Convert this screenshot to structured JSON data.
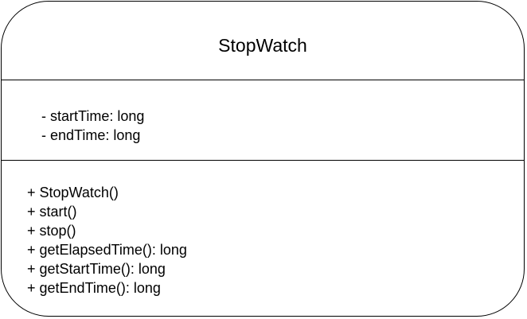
{
  "class": {
    "name": "StopWatch",
    "attributes": [
      "- startTime: long",
      "- endTime: long"
    ],
    "methods": [
      "+ StopWatch()",
      "+ start()",
      "+ stop()",
      "+ getElapsedTime(): long",
      "+ getStartTime(): long",
      "+ getEndTime(): long"
    ]
  }
}
